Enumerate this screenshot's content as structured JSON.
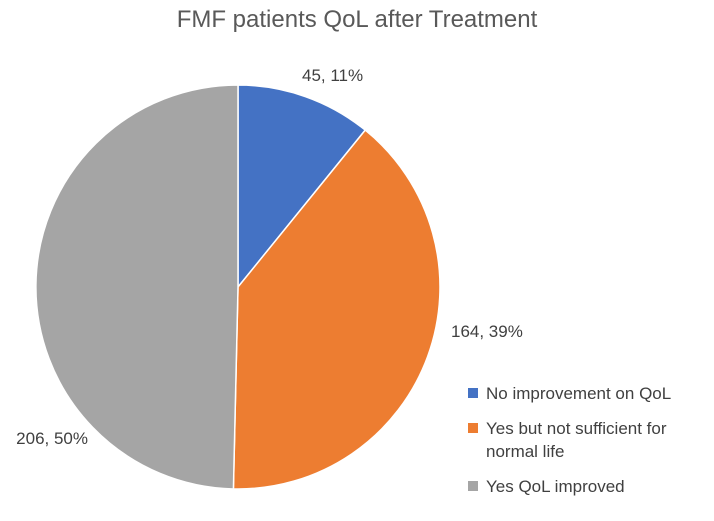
{
  "chart_data": {
    "type": "pie",
    "title": "FMF patients QoL after Treatment",
    "slices": [
      {
        "label": "No improvement on QoL",
        "value": 45,
        "percent": 11,
        "data_label": "45, 11%",
        "color": "#4472C4"
      },
      {
        "label": "Yes but not sufficient for normal life",
        "value": 164,
        "percent": 39,
        "data_label": "164, 39%",
        "color": "#ED7D31"
      },
      {
        "label": "Yes QoL improved",
        "value": 206,
        "percent": 50,
        "data_label": "206, 50%",
        "color": "#A5A5A5"
      }
    ],
    "legend_position": "bottom-right"
  }
}
